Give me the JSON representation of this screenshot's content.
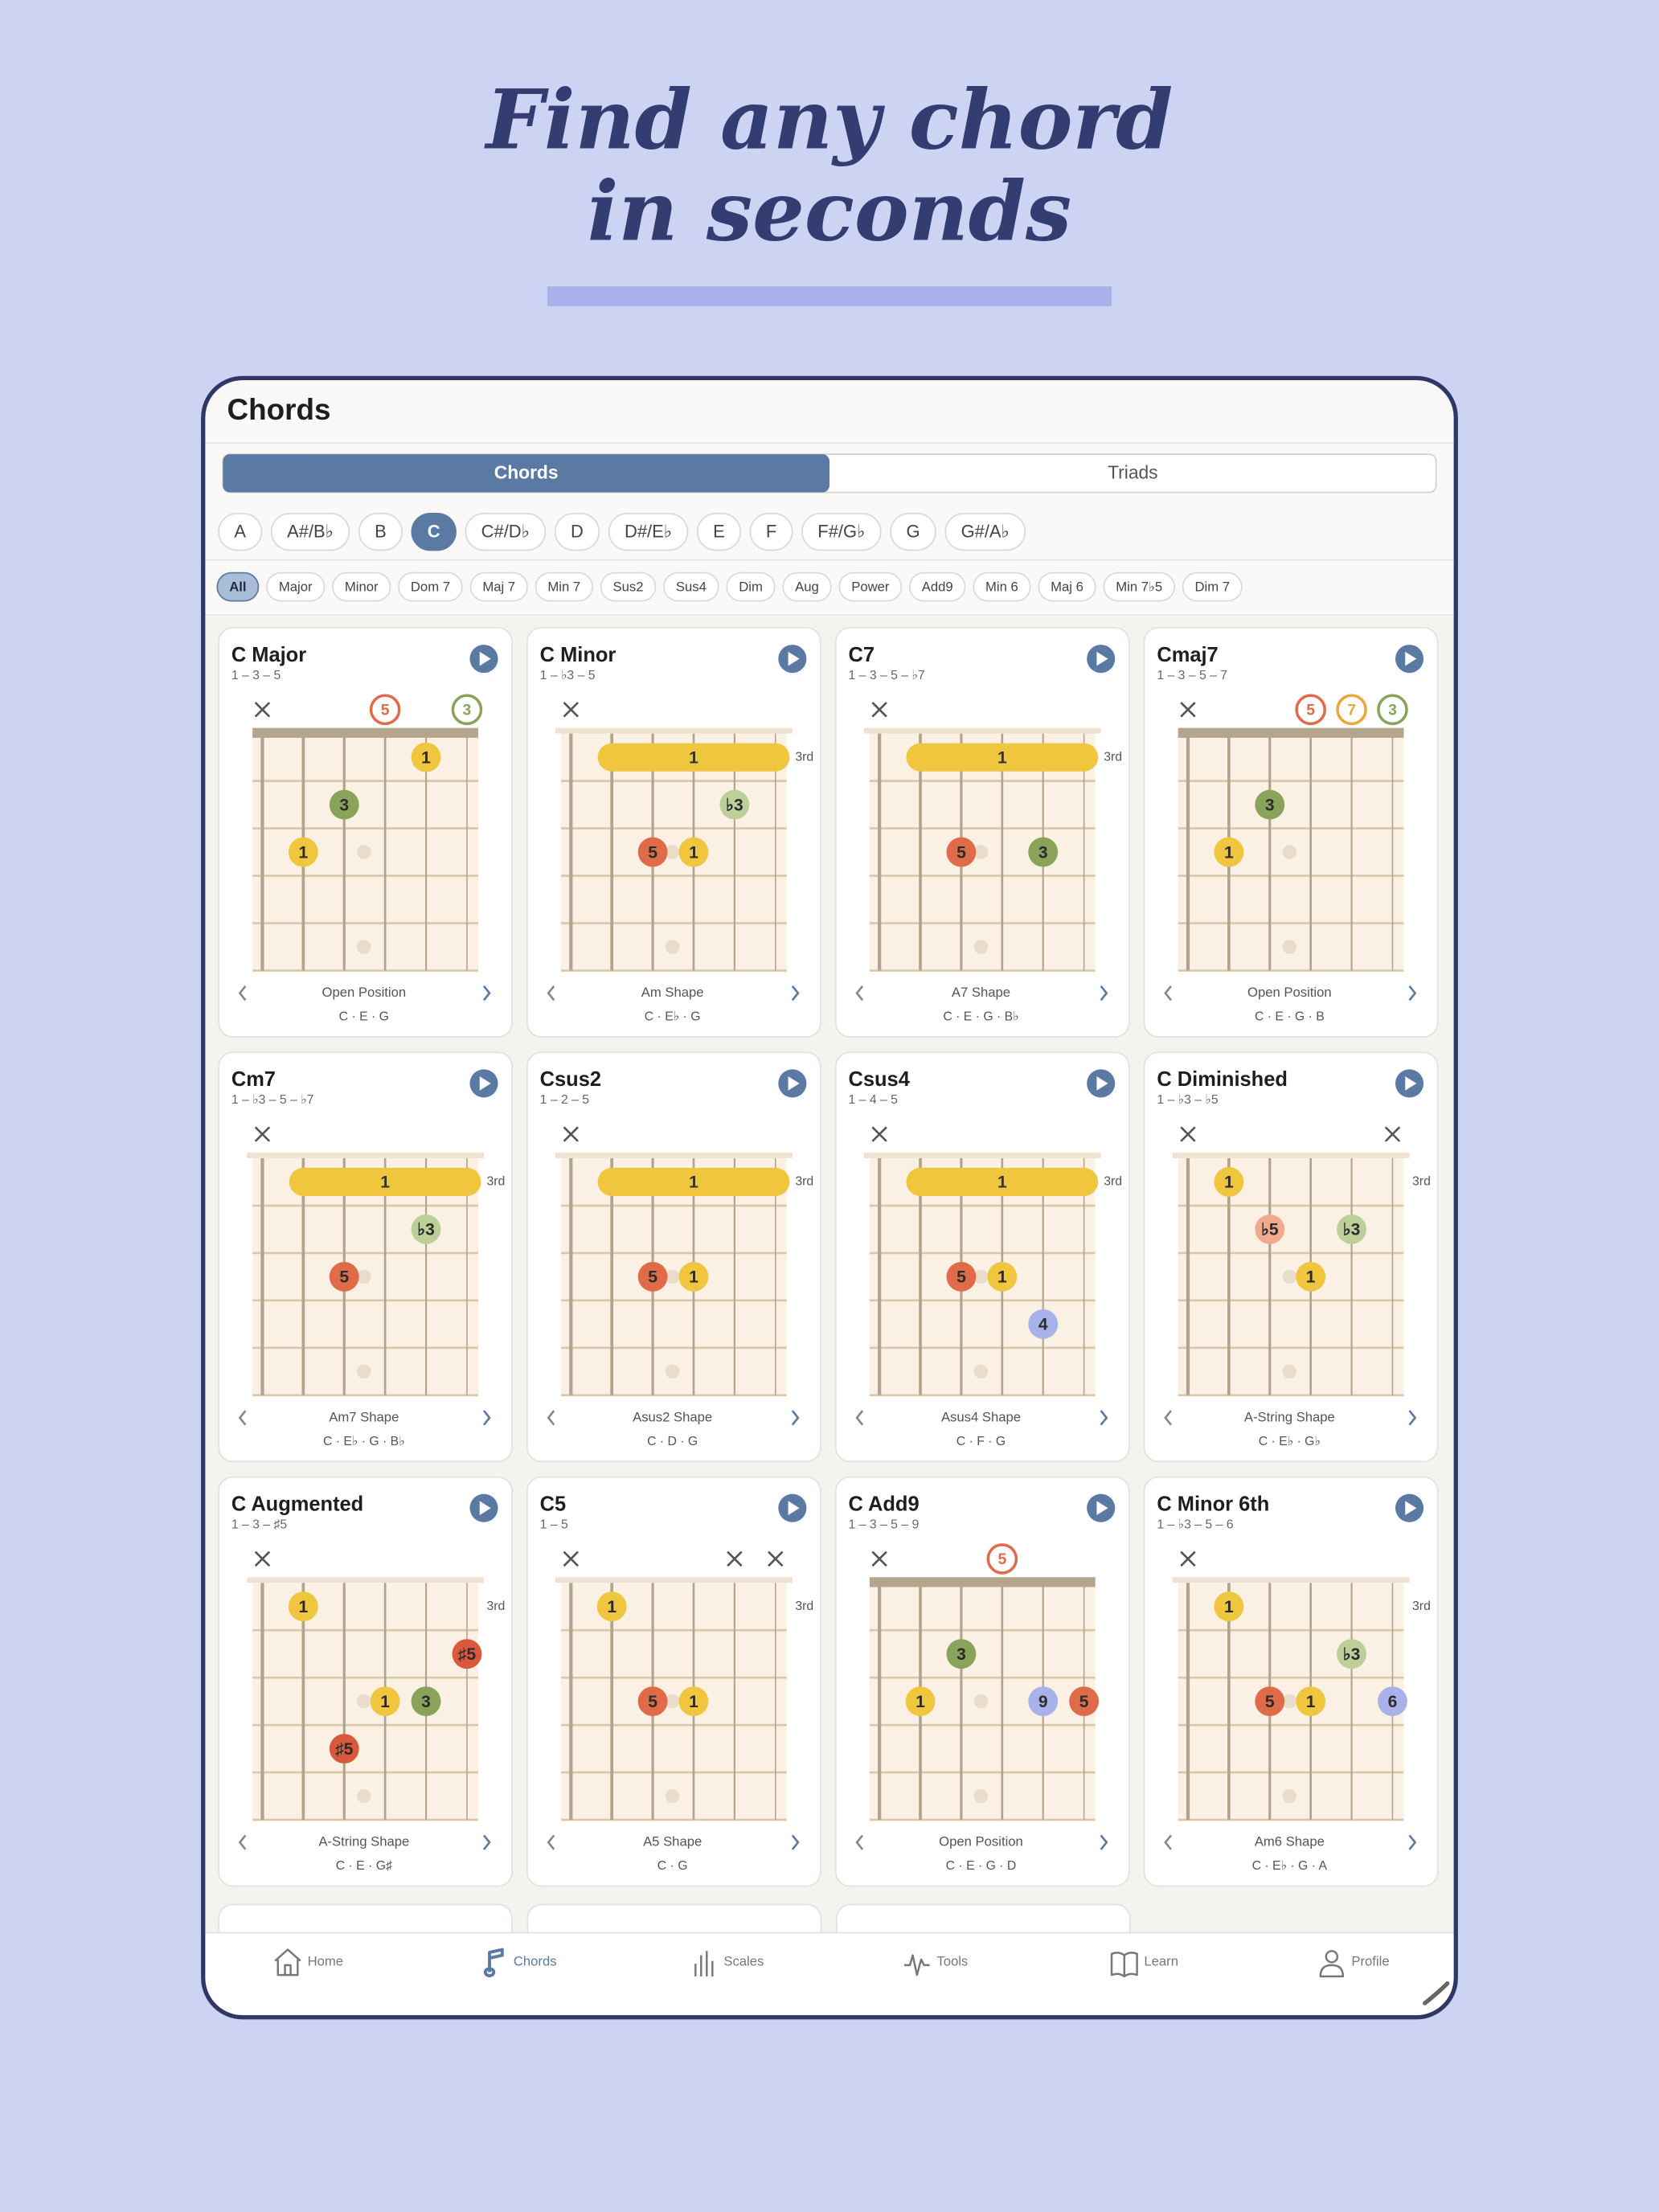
{
  "heading": {
    "line1": "Find any chord",
    "line2": "in seconds"
  },
  "screen": {
    "title": "Chords",
    "tabs": [
      "Chords",
      "Triads"
    ],
    "selected_tab": 0,
    "keys": [
      "A",
      "A#/B♭",
      "B",
      "C",
      "C#/D♭",
      "D",
      "D#/E♭",
      "E",
      "F",
      "F#/G♭",
      "G",
      "G#/A♭"
    ],
    "selected_key": 3,
    "types": [
      "All",
      "Major",
      "Minor",
      "Dom 7",
      "Maj 7",
      "Min 7",
      "Sus2",
      "Sus4",
      "Dim",
      "Aug",
      "Power",
      "Add9",
      "Min 6",
      "Maj 6",
      "Min 7♭5",
      "Dim 7"
    ],
    "selected_type": 0,
    "nav": [
      "Home",
      "Chords",
      "Scales",
      "Tools",
      "Learn",
      "Profile"
    ],
    "selected_nav": 1
  },
  "cards": [
    {
      "name": "C Major",
      "formula": "1 – 3 – 5",
      "open": [
        {
          "label": "5",
          "color": "#e06b48"
        },
        {
          "label": "3",
          "color": "#8aa35a"
        }
      ],
      "dots": [
        {
          "label": "1",
          "color": "#f0c63e"
        },
        {
          "label": "3",
          "color": "#8aa35a"
        },
        {
          "label": "1",
          "color": "#f0c63e"
        }
      ],
      "shape": "Open Position",
      "notes": "C · E · G"
    },
    {
      "name": "C Minor",
      "formula": "1 – ♭3 – 5",
      "barre": "1",
      "fret_label": "3rd",
      "dots": [
        {
          "label": "♭3",
          "color": "#bccf98"
        },
        {
          "label": "5",
          "color": "#e06b48"
        },
        {
          "label": "1",
          "color": "#f0c63e"
        }
      ],
      "shape": "Am Shape",
      "notes": "C · E♭ · G"
    },
    {
      "name": "C7",
      "formula": "1 – 3 – 5 – ♭7",
      "barre": "1",
      "fret_label": "3rd",
      "dots": [
        {
          "label": "5",
          "color": "#e06b48"
        },
        {
          "label": "3",
          "color": "#8aa35a"
        }
      ],
      "shape": "A7 Shape",
      "notes": "C · E · G · B♭"
    },
    {
      "name": "Cmaj7",
      "formula": "1 – 3 – 5 – 7",
      "open": [
        {
          "label": "5",
          "color": "#e06b48"
        },
        {
          "label": "7",
          "color": "#e8a83a"
        },
        {
          "label": "3",
          "color": "#8aa35a"
        }
      ],
      "dots": [
        {
          "label": "3",
          "color": "#8aa35a"
        },
        {
          "label": "1",
          "color": "#f0c63e"
        }
      ],
      "shape": "Open Position",
      "notes": "C · E · G · B"
    },
    {
      "name": "Cm7",
      "formula": "1 – ♭3 – 5 – ♭7",
      "barre": "1",
      "fret_label": "3rd",
      "dots": [
        {
          "label": "♭3",
          "color": "#bccf98"
        },
        {
          "label": "5",
          "color": "#e06b48"
        }
      ],
      "shape": "Am7 Shape",
      "notes": "C · E♭ · G · B♭"
    },
    {
      "name": "Csus2",
      "formula": "1 – 2 – 5",
      "barre": "1",
      "fret_label": "3rd",
      "dots": [
        {
          "label": "5",
          "color": "#e06b48"
        },
        {
          "label": "1",
          "color": "#f0c63e"
        }
      ],
      "shape": "Asus2 Shape",
      "notes": "C · D · G"
    },
    {
      "name": "Csus4",
      "formula": "1 – 4 – 5",
      "barre": "1",
      "fret_label": "3rd",
      "dots": [
        {
          "label": "5",
          "color": "#e06b48"
        },
        {
          "label": "1",
          "color": "#f0c63e"
        },
        {
          "label": "4",
          "color": "#a9b1ea"
        }
      ],
      "shape": "Asus4 Shape",
      "notes": "C · F · G"
    },
    {
      "name": "C Diminished",
      "formula": "1 – ♭3 – ♭5",
      "fret_label": "3rd",
      "dots": [
        {
          "label": "1",
          "color": "#f0c63e"
        },
        {
          "label": "♭5",
          "color": "#f2a98e"
        },
        {
          "label": "♭3",
          "color": "#bccf98"
        },
        {
          "label": "1",
          "color": "#f0c63e"
        }
      ],
      "shape": "A-String Shape",
      "notes": "C · E♭ · G♭"
    },
    {
      "name": "C Augmented",
      "formula": "1 – 3 – ♯5",
      "fret_label": "3rd",
      "dots": [
        {
          "label": "1",
          "color": "#f0c63e"
        },
        {
          "label": "♯5",
          "color": "#d9593a"
        },
        {
          "label": "1",
          "color": "#f0c63e"
        },
        {
          "label": "3",
          "color": "#8aa35a"
        },
        {
          "label": "♯5",
          "color": "#d9593a"
        }
      ],
      "shape": "A-String Shape",
      "notes": "C · E · G♯"
    },
    {
      "name": "C5",
      "formula": "1 – 5",
      "fret_label": "3rd",
      "dots": [
        {
          "label": "1",
          "color": "#f0c63e"
        },
        {
          "label": "5",
          "color": "#e06b48"
        },
        {
          "label": "1",
          "color": "#f0c63e"
        }
      ],
      "shape": "A5 Shape",
      "notes": "C · G"
    },
    {
      "name": "C Add9",
      "formula": "1 – 3 – 5 – 9",
      "open": [
        {
          "label": "5",
          "color": "#e06b48"
        }
      ],
      "dots": [
        {
          "label": "3",
          "color": "#8aa35a"
        },
        {
          "label": "1",
          "color": "#f0c63e"
        },
        {
          "label": "9",
          "color": "#a9b1ea"
        },
        {
          "label": "5",
          "color": "#e06b48"
        }
      ],
      "shape": "Open Position",
      "notes": "C · E · G · D"
    },
    {
      "name": "C Minor 6th",
      "formula": "1 – ♭3 – 5 – 6",
      "fret_label": "3rd",
      "dots": [
        {
          "label": "1",
          "color": "#f0c63e"
        },
        {
          "label": "♭3",
          "color": "#bccf98"
        },
        {
          "label": "5",
          "color": "#e06b48"
        },
        {
          "label": "1",
          "color": "#f0c63e"
        },
        {
          "label": "6",
          "color": "#a9b1ea"
        }
      ],
      "shape": "Am6 Shape",
      "notes": "C · E♭ · G · A"
    }
  ]
}
